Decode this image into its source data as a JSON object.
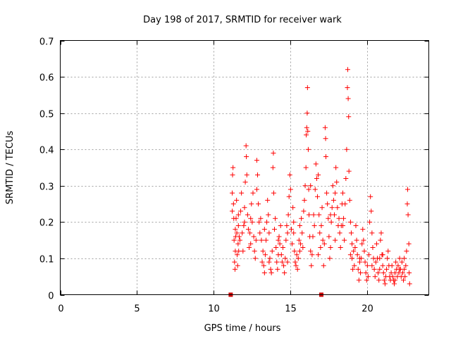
{
  "chart_data": {
    "type": "scatter",
    "title": "Day 198 of 2017, SRMTID for receiver wark",
    "xlabel": "GPS time / hours",
    "ylabel": "SRMTID / TECUs",
    "xlim": [
      0,
      24
    ],
    "ylim": [
      0,
      0.7
    ],
    "xticks": [
      0,
      5,
      10,
      15,
      20
    ],
    "yticks": [
      0,
      0.1,
      0.2,
      0.3,
      0.4,
      0.5,
      0.6,
      0.7
    ],
    "ytick_labels": [
      "0",
      "0.1",
      "0.2",
      "0.3",
      "0.4",
      "0.5",
      "0.6",
      "0.7"
    ],
    "grid": true,
    "marker": "+",
    "colors": {
      "points": "#ff0000",
      "markers": "#cc0000",
      "grid": "#a0a0a0",
      "frame": "#000000"
    },
    "baseline_markers": [
      {
        "x": 11.1,
        "y": 0
      },
      {
        "x": 17.0,
        "y": 0
      }
    ],
    "series": [
      {
        "name": "SRMTID",
        "points": [
          [
            11.2,
            0.23
          ],
          [
            11.2,
            0.28
          ],
          [
            11.22,
            0.33
          ],
          [
            11.25,
            0.35
          ],
          [
            11.28,
            0.25
          ],
          [
            11.3,
            0.21
          ],
          [
            11.32,
            0.15
          ],
          [
            11.35,
            0.09
          ],
          [
            11.38,
            0.07
          ],
          [
            11.4,
            0.12
          ],
          [
            11.42,
            0.16
          ],
          [
            11.45,
            0.21
          ],
          [
            11.48,
            0.26
          ],
          [
            11.5,
            0.17
          ],
          [
            11.52,
            0.11
          ],
          [
            11.55,
            0.08
          ],
          [
            11.58,
            0.14
          ],
          [
            11.6,
            0.19
          ],
          [
            11.62,
            0.12
          ],
          [
            11.65,
            0.16
          ],
          [
            11.7,
            0.15
          ],
          [
            11.75,
            0.23
          ],
          [
            11.8,
            0.28
          ],
          [
            11.85,
            0.17
          ],
          [
            11.9,
            0.12
          ],
          [
            11.95,
            0.19
          ],
          [
            12.0,
            0.24
          ],
          [
            12.05,
            0.31
          ],
          [
            12.1,
            0.41
          ],
          [
            12.12,
            0.38
          ],
          [
            12.15,
            0.33
          ],
          [
            12.2,
            0.22
          ],
          [
            12.25,
            0.18
          ],
          [
            12.3,
            0.13
          ],
          [
            12.35,
            0.17
          ],
          [
            12.4,
            0.21
          ],
          [
            12.45,
            0.25
          ],
          [
            12.5,
            0.2
          ],
          [
            12.55,
            0.28
          ],
          [
            12.6,
            0.16
          ],
          [
            12.65,
            0.12
          ],
          [
            12.7,
            0.1
          ],
          [
            12.75,
            0.15
          ],
          [
            12.8,
            0.37
          ],
          [
            12.85,
            0.33
          ],
          [
            12.9,
            0.25
          ],
          [
            12.95,
            0.2
          ],
          [
            13.0,
            0.17
          ],
          [
            13.05,
            0.21
          ],
          [
            13.1,
            0.15
          ],
          [
            13.15,
            0.09
          ],
          [
            13.2,
            0.12
          ],
          [
            13.25,
            0.08
          ],
          [
            13.3,
            0.06
          ],
          [
            13.35,
            0.11
          ],
          [
            13.4,
            0.15
          ],
          [
            13.45,
            0.2
          ],
          [
            13.5,
            0.26
          ],
          [
            13.55,
            0.22
          ],
          [
            13.6,
            0.17
          ],
          [
            13.65,
            0.1
          ],
          [
            13.7,
            0.07
          ],
          [
            13.75,
            0.06
          ],
          [
            13.8,
            0.12
          ],
          [
            13.85,
            0.35
          ],
          [
            13.88,
            0.39
          ],
          [
            13.9,
            0.28
          ],
          [
            13.95,
            0.18
          ],
          [
            14.0,
            0.21
          ],
          [
            14.05,
            0.13
          ],
          [
            14.1,
            0.09
          ],
          [
            14.15,
            0.07
          ],
          [
            14.2,
            0.11
          ],
          [
            14.25,
            0.16
          ],
          [
            14.3,
            0.14
          ],
          [
            14.35,
            0.19
          ],
          [
            14.4,
            0.11
          ],
          [
            14.45,
            0.09
          ],
          [
            14.5,
            0.13
          ],
          [
            14.55,
            0.08
          ],
          [
            14.6,
            0.06
          ],
          [
            14.65,
            0.1
          ],
          [
            14.7,
            0.15
          ],
          [
            14.75,
            0.19
          ],
          [
            14.8,
            0.17
          ],
          [
            14.85,
            0.22
          ],
          [
            14.9,
            0.27
          ],
          [
            14.95,
            0.33
          ],
          [
            15.0,
            0.29
          ],
          [
            15.05,
            0.18
          ],
          [
            15.1,
            0.14
          ],
          [
            15.15,
            0.24
          ],
          [
            15.2,
            0.2
          ],
          [
            15.25,
            0.12
          ],
          [
            15.3,
            0.09
          ],
          [
            15.35,
            0.08
          ],
          [
            15.4,
            0.11
          ],
          [
            15.45,
            0.07
          ],
          [
            15.5,
            0.1
          ],
          [
            15.55,
            0.15
          ],
          [
            15.6,
            0.19
          ],
          [
            15.65,
            0.14
          ],
          [
            15.7,
            0.21
          ],
          [
            15.75,
            0.17
          ],
          [
            15.8,
            0.13
          ],
          [
            15.85,
            0.23
          ],
          [
            15.9,
            0.26
          ],
          [
            15.95,
            0.3
          ],
          [
            16.0,
            0.35
          ],
          [
            16.02,
            0.44
          ],
          [
            16.05,
            0.46
          ],
          [
            16.08,
            0.5
          ],
          [
            16.1,
            0.57
          ],
          [
            16.12,
            0.45
          ],
          [
            16.15,
            0.4
          ],
          [
            16.18,
            0.29
          ],
          [
            16.2,
            0.22
          ],
          [
            16.25,
            0.16
          ],
          [
            16.3,
            0.12
          ],
          [
            16.35,
            0.08
          ],
          [
            16.4,
            0.11
          ],
          [
            16.45,
            0.16
          ],
          [
            16.5,
            0.22
          ],
          [
            16.55,
            0.19
          ],
          [
            16.6,
            0.29
          ],
          [
            16.65,
            0.36
          ],
          [
            16.7,
            0.32
          ],
          [
            16.75,
            0.27
          ],
          [
            16.8,
            0.33
          ],
          [
            16.85,
            0.22
          ],
          [
            16.9,
            0.17
          ],
          [
            16.95,
            0.13
          ],
          [
            17.0,
            0.19
          ],
          [
            17.05,
            0.24
          ],
          [
            17.1,
            0.15
          ],
          [
            17.15,
            0.08
          ],
          [
            17.2,
            0.14
          ],
          [
            17.25,
            0.46
          ],
          [
            17.28,
            0.43
          ],
          [
            17.3,
            0.38
          ],
          [
            17.35,
            0.28
          ],
          [
            17.4,
            0.25
          ],
          [
            17.45,
            0.21
          ],
          [
            17.5,
            0.16
          ],
          [
            17.55,
            0.1
          ],
          [
            17.6,
            0.13
          ],
          [
            17.65,
            0.2
          ],
          [
            17.7,
            0.24
          ],
          [
            17.75,
            0.3
          ],
          [
            17.8,
            0.26
          ],
          [
            17.85,
            0.22
          ],
          [
            17.9,
            0.28
          ],
          [
            17.95,
            0.35
          ],
          [
            18.0,
            0.31
          ],
          [
            18.05,
            0.24
          ],
          [
            18.1,
            0.19
          ],
          [
            18.15,
            0.21
          ],
          [
            18.2,
            0.17
          ],
          [
            18.25,
            0.13
          ],
          [
            18.3,
            0.19
          ],
          [
            18.35,
            0.25
          ],
          [
            18.4,
            0.28
          ],
          [
            18.45,
            0.21
          ],
          [
            18.5,
            0.15
          ],
          [
            18.55,
            0.25
          ],
          [
            18.6,
            0.32
          ],
          [
            18.65,
            0.4
          ],
          [
            18.7,
            0.57
          ],
          [
            18.72,
            0.62
          ],
          [
            18.75,
            0.54
          ],
          [
            18.78,
            0.49
          ],
          [
            18.8,
            0.34
          ],
          [
            18.85,
            0.26
          ],
          [
            18.9,
            0.2
          ],
          [
            18.95,
            0.17
          ],
          [
            19.0,
            0.1
          ],
          [
            19.05,
            0.07
          ],
          [
            19.1,
            0.12
          ],
          [
            19.15,
            0.08
          ],
          [
            19.2,
            0.13
          ],
          [
            19.25,
            0.19
          ],
          [
            19.3,
            0.15
          ],
          [
            19.35,
            0.11
          ],
          [
            19.4,
            0.07
          ],
          [
            19.45,
            0.04
          ],
          [
            19.5,
            0.09
          ],
          [
            19.55,
            0.06
          ],
          [
            19.6,
            0.1
          ],
          [
            19.65,
            0.14
          ],
          [
            19.7,
            0.18
          ],
          [
            19.75,
            0.15
          ],
          [
            19.8,
            0.12
          ],
          [
            19.85,
            0.09
          ],
          [
            19.9,
            0.06
          ],
          [
            19.95,
            0.04
          ],
          [
            20.0,
            0.08
          ],
          [
            20.05,
            0.05
          ],
          [
            20.1,
            0.11
          ],
          [
            20.15,
            0.2
          ],
          [
            20.2,
            0.27
          ],
          [
            20.25,
            0.23
          ],
          [
            20.3,
            0.17
          ],
          [
            20.35,
            0.13
          ],
          [
            20.4,
            0.1
          ],
          [
            20.45,
            0.07
          ],
          [
            20.5,
            0.05
          ],
          [
            20.55,
            0.09
          ],
          [
            20.6,
            0.14
          ],
          [
            20.65,
            0.1
          ],
          [
            20.7,
            0.06
          ],
          [
            20.75,
            0.04
          ],
          [
            20.8,
            0.07
          ],
          [
            20.85,
            0.15
          ],
          [
            20.9,
            0.17
          ],
          [
            20.95,
            0.11
          ],
          [
            21.0,
            0.08
          ],
          [
            21.05,
            0.06
          ],
          [
            21.1,
            0.04
          ],
          [
            21.15,
            0.03
          ],
          [
            21.2,
            0.05
          ],
          [
            21.25,
            0.07
          ],
          [
            21.3,
            0.1
          ],
          [
            21.35,
            0.12
          ],
          [
            21.4,
            0.08
          ],
          [
            21.45,
            0.05
          ],
          [
            21.5,
            0.04
          ],
          [
            21.55,
            0.06
          ],
          [
            21.6,
            0.08
          ],
          [
            21.65,
            0.05
          ],
          [
            21.7,
            0.04
          ],
          [
            21.75,
            0.03
          ],
          [
            21.8,
            0.06
          ],
          [
            21.85,
            0.09
          ],
          [
            21.9,
            0.07
          ],
          [
            21.95,
            0.05
          ],
          [
            22.0,
            0.08
          ],
          [
            22.05,
            0.06
          ],
          [
            22.1,
            0.1
          ],
          [
            22.15,
            0.07
          ],
          [
            22.2,
            0.05
          ],
          [
            22.25,
            0.09
          ],
          [
            22.3,
            0.06
          ],
          [
            22.35,
            0.04
          ],
          [
            22.4,
            0.07
          ],
          [
            22.45,
            0.05
          ],
          [
            22.5,
            0.08
          ],
          [
            22.55,
            0.12
          ],
          [
            22.6,
            0.25
          ],
          [
            22.62,
            0.29
          ],
          [
            22.65,
            0.22
          ],
          [
            22.7,
            0.14
          ],
          [
            22.72,
            0.06
          ],
          [
            22.75,
            0.03
          ],
          [
            11.6,
            0.22
          ],
          [
            12.0,
            0.2
          ],
          [
            12.8,
            0.29
          ],
          [
            13.6,
            0.09
          ],
          [
            14.2,
            0.15
          ],
          [
            15.2,
            0.17
          ],
          [
            16.3,
            0.3
          ],
          [
            17.6,
            0.22
          ],
          [
            18.4,
            0.19
          ],
          [
            19.0,
            0.14
          ],
          [
            19.5,
            0.1
          ],
          [
            20.3,
            0.08
          ],
          [
            21.0,
            0.11
          ],
          [
            21.8,
            0.04
          ],
          [
            22.4,
            0.1
          ],
          [
            11.4,
            0.18
          ],
          [
            12.4,
            0.14
          ],
          [
            13.3,
            0.18
          ],
          [
            14.8,
            0.09
          ],
          [
            15.6,
            0.12
          ],
          [
            16.8,
            0.11
          ],
          [
            17.9,
            0.15
          ],
          [
            18.9,
            0.11
          ],
          [
            20.8,
            0.1
          ],
          [
            22.1,
            0.07
          ]
        ]
      }
    ]
  }
}
